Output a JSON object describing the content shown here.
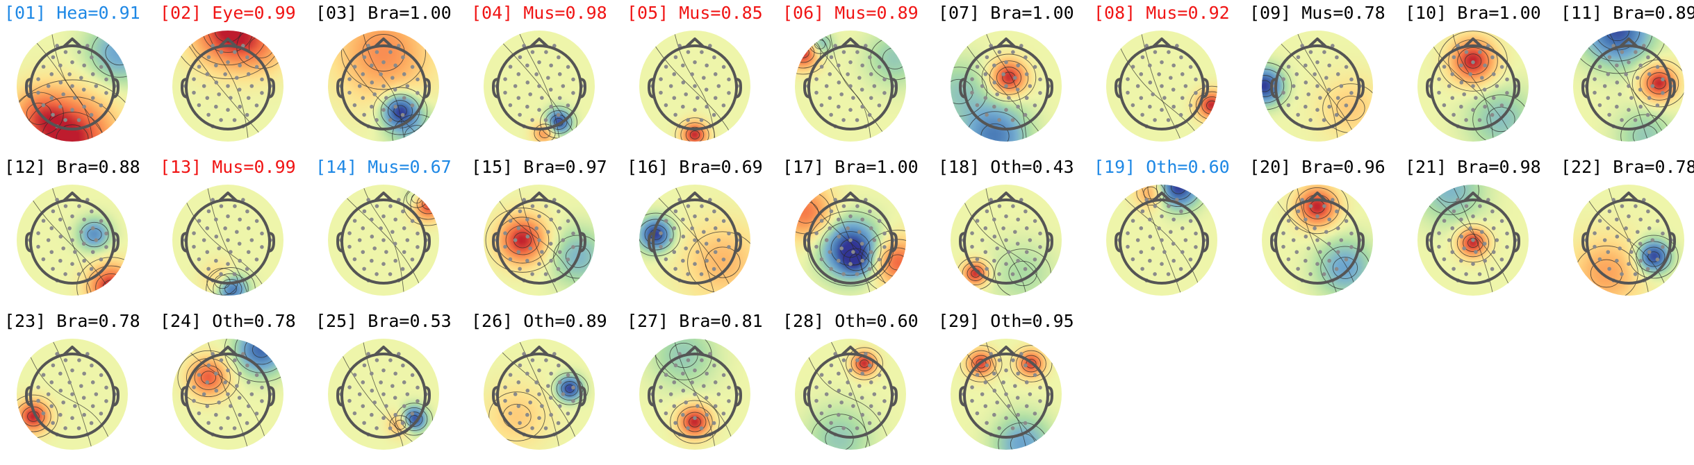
{
  "figure": {
    "colors": {
      "default": "#000000",
      "red": "#f01414",
      "blue": "#1e88e5"
    },
    "components": [
      {
        "label": "[01] Hea=0.91",
        "color": "blue",
        "blobs": [
          {
            "dx": 0,
            "dy": 0.95,
            "s": 0.55,
            "v": 1.0
          },
          {
            "dx": -0.6,
            "dy": 0.5,
            "s": 0.35,
            "v": 0.5
          },
          {
            "dx": 0.85,
            "dy": -0.6,
            "s": 0.4,
            "v": -0.5
          }
        ]
      },
      {
        "label": "[02] Eye=0.99",
        "color": "red",
        "blobs": [
          {
            "dx": 0,
            "dy": -1.0,
            "s": 0.45,
            "v": 1.0
          },
          {
            "dx": 0.6,
            "dy": -0.7,
            "s": 0.35,
            "v": 0.4
          }
        ]
      },
      {
        "label": "[03] Bra=1.00",
        "color": "default",
        "blobs": [
          {
            "dx": 0.3,
            "dy": 0.45,
            "s": 0.22,
            "v": -1.0
          },
          {
            "dx": 0,
            "dy": -0.6,
            "s": 0.6,
            "v": 0.6
          },
          {
            "dx": 0.6,
            "dy": 0.9,
            "s": 0.35,
            "v": -0.3
          }
        ]
      },
      {
        "label": "[04] Mus=0.98",
        "color": "red",
        "blobs": [
          {
            "dx": 0.35,
            "dy": 0.65,
            "s": 0.15,
            "v": -1.0
          },
          {
            "dx": 0.1,
            "dy": 0.85,
            "s": 0.15,
            "v": 0.6
          }
        ]
      },
      {
        "label": "[05] Mus=0.85",
        "color": "red",
        "blobs": [
          {
            "dx": 0,
            "dy": 0.88,
            "s": 0.16,
            "v": 1.0
          }
        ]
      },
      {
        "label": "[06] Mus=0.89",
        "color": "red",
        "blobs": [
          {
            "dx": -0.85,
            "dy": -0.6,
            "s": 0.2,
            "v": 1.0
          },
          {
            "dx": -0.55,
            "dy": -0.75,
            "s": 0.15,
            "v": -0.5
          },
          {
            "dx": 0.8,
            "dy": -0.5,
            "s": 0.35,
            "v": -0.3
          }
        ]
      },
      {
        "label": "[07] Bra=1.00",
        "color": "default",
        "blobs": [
          {
            "dx": 0.05,
            "dy": -0.15,
            "s": 0.22,
            "v": 1.0
          },
          {
            "dx": -0.2,
            "dy": 0.9,
            "s": 0.4,
            "v": -0.7
          },
          {
            "dx": -0.85,
            "dy": 0.1,
            "s": 0.4,
            "v": -0.3
          }
        ]
      },
      {
        "label": "[08] Mus=0.92",
        "color": "red",
        "blobs": [
          {
            "dx": 0.9,
            "dy": 0.35,
            "s": 0.18,
            "v": 1.0
          }
        ]
      },
      {
        "label": "[09] Mus=0.78",
        "color": "default",
        "blobs": [
          {
            "dx": -0.95,
            "dy": 0.0,
            "s": 0.22,
            "v": -1.0
          },
          {
            "dx": 0.6,
            "dy": 0.4,
            "s": 0.4,
            "v": 0.3
          }
        ]
      },
      {
        "label": "[10] Bra=1.00",
        "color": "default",
        "blobs": [
          {
            "dx": 0.0,
            "dy": -0.45,
            "s": 0.28,
            "v": 1.0
          },
          {
            "dx": 0.5,
            "dy": 0.6,
            "s": 0.4,
            "v": -0.35
          }
        ]
      },
      {
        "label": "[11] Bra=0.89",
        "color": "default",
        "blobs": [
          {
            "dx": 0.55,
            "dy": -0.05,
            "s": 0.22,
            "v": 1.0
          },
          {
            "dx": -0.2,
            "dy": -1.0,
            "s": 0.4,
            "v": -0.9
          },
          {
            "dx": 0.3,
            "dy": 0.9,
            "s": 0.35,
            "v": -0.3
          }
        ]
      },
      {
        "label": "[12] Bra=0.88",
        "color": "default",
        "blobs": [
          {
            "dx": 0.7,
            "dy": 0.85,
            "s": 0.28,
            "v": 1.0
          },
          {
            "dx": 0.4,
            "dy": -0.1,
            "s": 0.2,
            "v": -0.6
          }
        ]
      },
      {
        "label": "[13] Mus=0.99",
        "color": "red",
        "blobs": [
          {
            "dx": 0.05,
            "dy": 0.88,
            "s": 0.2,
            "v": -1.0
          },
          {
            "dx": -0.1,
            "dy": 0.75,
            "s": 0.22,
            "v": 0.5
          }
        ]
      },
      {
        "label": "[14] Mus=0.67",
        "color": "blue",
        "blobs": [
          {
            "dx": 0.8,
            "dy": -0.65,
            "s": 0.2,
            "v": 1.0
          },
          {
            "dx": 0.6,
            "dy": -0.75,
            "s": 0.15,
            "v": -0.4
          }
        ]
      },
      {
        "label": "[15] Bra=0.97",
        "color": "default",
        "blobs": [
          {
            "dx": -0.3,
            "dy": 0.0,
            "s": 0.3,
            "v": 1.0
          },
          {
            "dx": 0.7,
            "dy": 0.3,
            "s": 0.35,
            "v": -0.4
          }
        ]
      },
      {
        "label": "[16] Bra=0.69",
        "color": "default",
        "blobs": [
          {
            "dx": -0.7,
            "dy": -0.1,
            "s": 0.2,
            "v": -1.0
          },
          {
            "dx": 0.5,
            "dy": 0.4,
            "s": 0.5,
            "v": 0.4
          }
        ]
      },
      {
        "label": "[17] Bra=1.00",
        "color": "default",
        "blobs": [
          {
            "dx": 0.0,
            "dy": 0.15,
            "s": 0.35,
            "v": -1.0
          },
          {
            "dx": 0.1,
            "dy": 0.35,
            "s": 0.18,
            "v": -0.5
          },
          {
            "dx": 0.85,
            "dy": 0.4,
            "s": 0.3,
            "v": 0.8
          },
          {
            "dx": -0.8,
            "dy": -0.5,
            "s": 0.35,
            "v": 0.7
          }
        ]
      },
      {
        "label": "[18] Oth=0.43",
        "color": "default",
        "blobs": [
          {
            "dx": -0.55,
            "dy": 0.6,
            "s": 0.15,
            "v": 1.0
          },
          {
            "dx": 0.3,
            "dy": 0.6,
            "s": 0.4,
            "v": -0.2
          }
        ]
      },
      {
        "label": "[19] Oth=0.60",
        "color": "blue",
        "blobs": [
          {
            "dx": 0.3,
            "dy": -0.95,
            "s": 0.25,
            "v": -1.0
          },
          {
            "dx": -0.2,
            "dy": -0.85,
            "s": 0.2,
            "v": 0.5
          }
        ]
      },
      {
        "label": "[20] Bra=0.96",
        "color": "default",
        "blobs": [
          {
            "dx": 0.0,
            "dy": -0.6,
            "s": 0.25,
            "v": 1.0
          },
          {
            "dx": 0.5,
            "dy": 0.5,
            "s": 0.35,
            "v": -0.5
          }
        ]
      },
      {
        "label": "[21] Bra=0.98",
        "color": "default",
        "blobs": [
          {
            "dx": 0.0,
            "dy": 0.05,
            "s": 0.18,
            "v": 1.0
          },
          {
            "dx": -0.4,
            "dy": -0.9,
            "s": 0.4,
            "v": -0.4
          }
        ]
      },
      {
        "label": "[22] Bra=0.78",
        "color": "default",
        "blobs": [
          {
            "dx": 0.45,
            "dy": 0.3,
            "s": 0.2,
            "v": -1.0
          },
          {
            "dx": -0.4,
            "dy": 0.6,
            "s": 0.45,
            "v": 0.5
          }
        ]
      },
      {
        "label": "[23] Bra=0.78",
        "color": "default",
        "blobs": [
          {
            "dx": -0.7,
            "dy": 0.4,
            "s": 0.2,
            "v": 1.0
          }
        ]
      },
      {
        "label": "[24] Oth=0.78",
        "color": "default",
        "blobs": [
          {
            "dx": -0.35,
            "dy": -0.3,
            "s": 0.25,
            "v": 0.8
          },
          {
            "dx": 0.6,
            "dy": -0.8,
            "s": 0.3,
            "v": -0.8
          }
        ]
      },
      {
        "label": "[25] Bra=0.53",
        "color": "default",
        "blobs": [
          {
            "dx": 0.55,
            "dy": 0.45,
            "s": 0.15,
            "v": -1.0
          },
          {
            "dx": 0.3,
            "dy": 0.55,
            "s": 0.15,
            "v": 0.5
          }
        ]
      },
      {
        "label": "[26] Oth=0.89",
        "color": "default",
        "blobs": [
          {
            "dx": 0.55,
            "dy": -0.1,
            "s": 0.15,
            "v": -1.0
          },
          {
            "dx": -0.4,
            "dy": 0.4,
            "s": 0.4,
            "v": 0.3
          }
        ]
      },
      {
        "label": "[27] Bra=0.81",
        "color": "default",
        "blobs": [
          {
            "dx": 0.0,
            "dy": 0.5,
            "s": 0.2,
            "v": 1.0
          },
          {
            "dx": -0.2,
            "dy": -0.7,
            "s": 0.4,
            "v": -0.3
          }
        ]
      },
      {
        "label": "[28] Oth=0.60",
        "color": "default",
        "blobs": [
          {
            "dx": 0.25,
            "dy": -0.55,
            "s": 0.15,
            "v": 1.0
          },
          {
            "dx": -0.2,
            "dy": 0.8,
            "s": 0.4,
            "v": -0.3
          }
        ]
      },
      {
        "label": "[29] Oth=0.95",
        "color": "default",
        "blobs": [
          {
            "dx": -0.45,
            "dy": -0.55,
            "s": 0.17,
            "v": 0.9
          },
          {
            "dx": 0.45,
            "dy": -0.55,
            "s": 0.17,
            "v": 0.9
          },
          {
            "dx": 0.3,
            "dy": 0.9,
            "s": 0.35,
            "v": -0.5
          }
        ]
      }
    ]
  }
}
